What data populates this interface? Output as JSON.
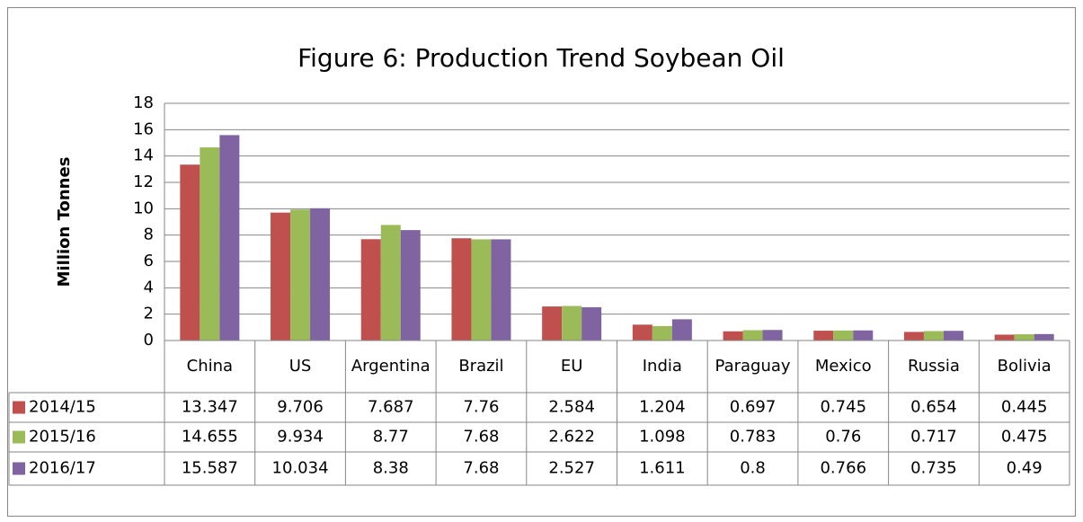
{
  "chart_data": {
    "type": "bar",
    "title": "Figure 6: Production Trend Soybean Oil",
    "y_label": "Million Tonnes",
    "categories": [
      "China",
      "US",
      "Argentina",
      "Brazil",
      "EU",
      "India",
      "Paraguay",
      "Mexico",
      "Russia",
      "Bolivia"
    ],
    "series": [
      {
        "name": "2014/15",
        "color": "#c0504d",
        "values": [
          13.347,
          9.706,
          7.687,
          7.76,
          2.584,
          1.204,
          0.697,
          0.745,
          0.654,
          0.445
        ]
      },
      {
        "name": "2015/16",
        "color": "#9bbb59",
        "values": [
          14.655,
          9.934,
          8.77,
          7.68,
          2.622,
          1.098,
          0.783,
          0.76,
          0.717,
          0.475
        ]
      },
      {
        "name": "2016/17",
        "color": "#8064a2",
        "values": [
          15.587,
          10.034,
          8.38,
          7.68,
          2.527,
          1.611,
          0.8,
          0.766,
          0.735,
          0.49
        ]
      }
    ],
    "ylim": [
      0,
      18
    ],
    "yticks": [
      0,
      2,
      4,
      6,
      8,
      10,
      12,
      14,
      16,
      18
    ],
    "grid": true
  }
}
